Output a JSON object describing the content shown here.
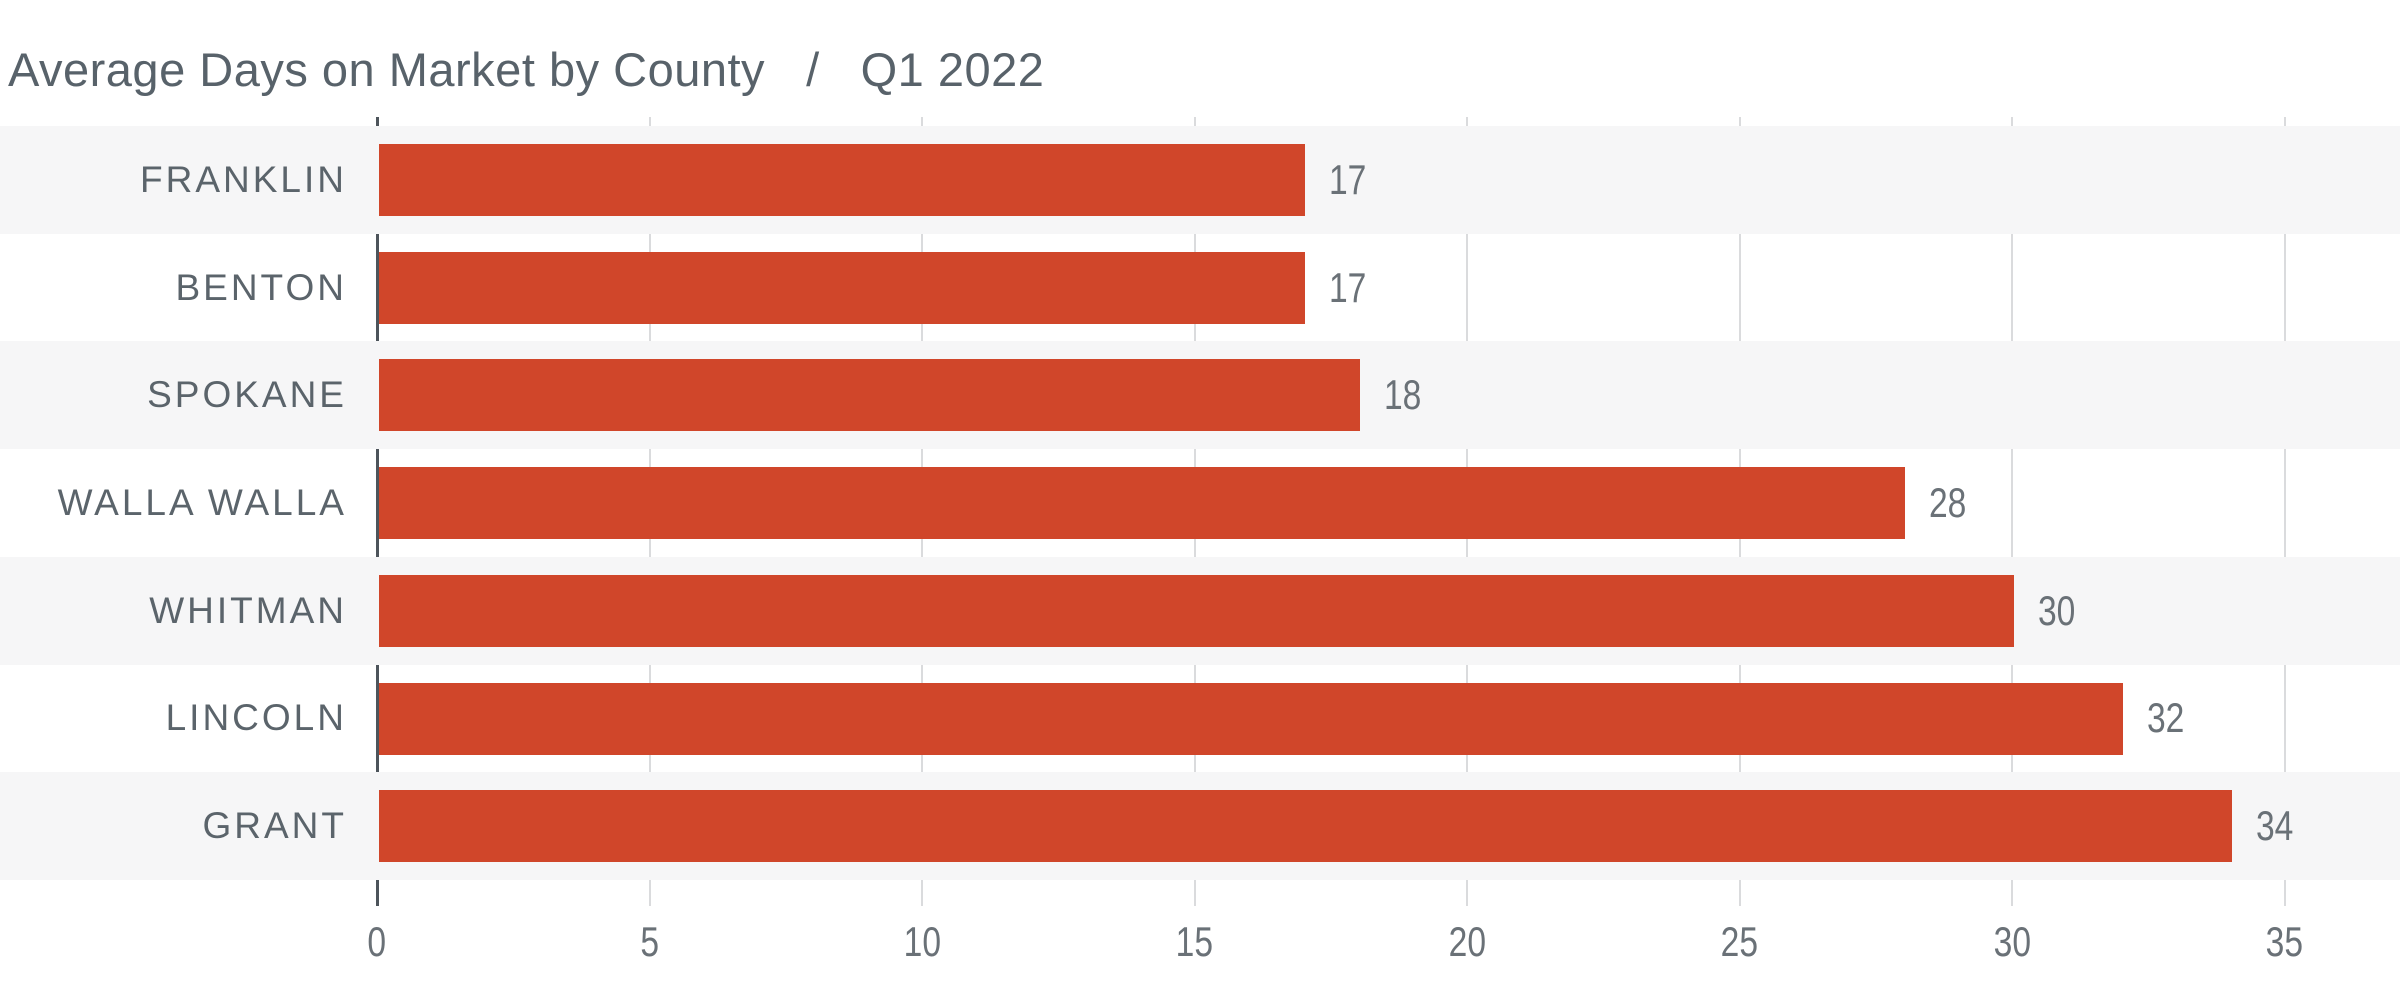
{
  "title": {
    "main": "Average Days on Market by County",
    "separator": "/",
    "period": "Q1 2022"
  },
  "chart_data": {
    "type": "bar",
    "orientation": "horizontal",
    "title": "Average Days on Market by County / Q1 2022",
    "xlabel": "",
    "ylabel": "",
    "categories": [
      "FRANKLIN",
      "BENTON",
      "SPOKANE",
      "WALLA WALLA",
      "WHITMAN",
      "LINCOLN",
      "GRANT"
    ],
    "values": [
      17,
      17,
      18,
      28,
      30,
      32,
      34
    ],
    "value_labels": [
      "17",
      "17",
      "18",
      "28",
      "30",
      "32",
      "34"
    ],
    "x_ticks": [
      0,
      5,
      10,
      15,
      20,
      25,
      30,
      35
    ],
    "xlim": [
      0,
      37.1
    ],
    "grid": true,
    "legend": false,
    "row_banding": "alternating, starting shaded on first row",
    "colors": {
      "bar": "#D0462A",
      "band": "#F6F6F7",
      "gridline": "#DADBDD",
      "axis_line": "#4D545B",
      "title_text": "#58626A",
      "category_text": "#5B646B",
      "value_text": "#6A7177",
      "background": "#FFFFFF"
    }
  }
}
